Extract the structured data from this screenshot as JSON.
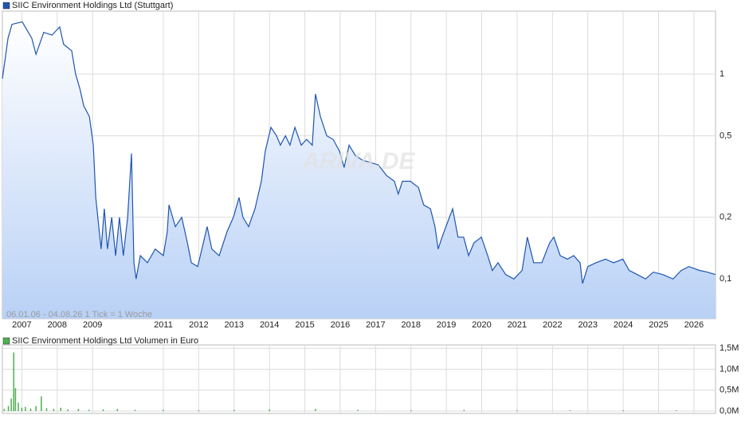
{
  "chart_data": [
    {
      "type": "line",
      "title": "SIIC Environment Holdings Ltd (Stuttgart)",
      "info": "06.01.06 - 04.08.26   1 Tick = 1 Woche",
      "watermark": "ARIVA.DE",
      "log_scale": true,
      "grid": true,
      "color": "#1f55b0",
      "x": [
        2006.45,
        2006.61,
        2006.72,
        2007.01,
        2007.28,
        2007.4,
        2007.62,
        2007.85,
        2008.07,
        2008.18,
        2008.41,
        2008.52,
        2008.64,
        2008.75,
        2008.91,
        2009.02,
        2009.09,
        2009.24,
        2009.33,
        2009.42,
        2009.54,
        2009.65,
        2009.76,
        2009.87,
        2009.99,
        2010.1,
        2010.17,
        2010.23,
        2010.35,
        2010.55,
        2010.77,
        2011.0,
        2011.11,
        2011.16,
        2011.34,
        2011.52,
        2011.68,
        2011.79,
        2011.97,
        2012.13,
        2012.24,
        2012.37,
        2012.58,
        2012.8,
        2012.98,
        2013.14,
        2013.25,
        2013.41,
        2013.59,
        2013.77,
        2013.88,
        2014.04,
        2014.2,
        2014.31,
        2014.45,
        2014.58,
        2014.72,
        2014.9,
        2015.05,
        2015.21,
        2015.3,
        2015.44,
        2015.62,
        2015.8,
        2015.98,
        2016.11,
        2016.25,
        2016.43,
        2016.63,
        2016.86,
        2017.08,
        2017.31,
        2017.53,
        2017.64,
        2017.76,
        2017.98,
        2018.21,
        2018.36,
        2018.55,
        2018.68,
        2018.77,
        2018.88,
        2019.04,
        2019.18,
        2019.33,
        2019.49,
        2019.63,
        2019.78,
        2019.99,
        2020.17,
        2020.3,
        2020.46,
        2020.68,
        2020.91,
        2021.14,
        2021.29,
        2021.47,
        2021.7,
        2021.92,
        2022.04,
        2022.22,
        2022.42,
        2022.6,
        2022.78,
        2022.85,
        2023.0,
        2023.23,
        2023.5,
        2023.73,
        2023.99,
        2024.17,
        2024.4,
        2024.63,
        2024.85,
        2025.12,
        2025.41,
        2025.64,
        2025.86,
        2026.16,
        2026.38,
        2026.61
      ],
      "series": [
        {
          "name": "SIIC Environment Holdings Ltd (Stuttgart)",
          "color": "#1f55b0",
          "values": [
            0.95,
            1.5,
            1.75,
            1.8,
            1.5,
            1.25,
            1.6,
            1.55,
            1.7,
            1.4,
            1.3,
            1.0,
            0.85,
            0.7,
            0.62,
            0.45,
            0.25,
            0.14,
            0.22,
            0.14,
            0.2,
            0.13,
            0.2,
            0.13,
            0.2,
            0.41,
            0.12,
            0.1,
            0.13,
            0.12,
            0.14,
            0.13,
            0.17,
            0.23,
            0.18,
            0.2,
            0.15,
            0.12,
            0.115,
            0.15,
            0.18,
            0.14,
            0.13,
            0.17,
            0.2,
            0.25,
            0.2,
            0.18,
            0.22,
            0.3,
            0.42,
            0.55,
            0.5,
            0.45,
            0.5,
            0.45,
            0.55,
            0.45,
            0.48,
            0.45,
            0.8,
            0.62,
            0.5,
            0.48,
            0.42,
            0.35,
            0.45,
            0.4,
            0.38,
            0.37,
            0.36,
            0.32,
            0.3,
            0.26,
            0.3,
            0.3,
            0.28,
            0.23,
            0.22,
            0.18,
            0.14,
            0.16,
            0.19,
            0.22,
            0.16,
            0.16,
            0.13,
            0.15,
            0.16,
            0.13,
            0.11,
            0.12,
            0.105,
            0.1,
            0.11,
            0.16,
            0.12,
            0.12,
            0.15,
            0.16,
            0.13,
            0.125,
            0.13,
            0.12,
            0.095,
            0.115,
            0.12,
            0.125,
            0.12,
            0.125,
            0.11,
            0.105,
            0.1,
            0.108,
            0.105,
            0.1,
            0.11,
            0.115,
            0.11,
            0.108,
            0.105
          ]
        }
      ],
      "xlim": [
        2006.45,
        2026.61
      ],
      "xticks": [
        2007,
        2008,
        2009,
        2011,
        2012,
        2013,
        2014,
        2015,
        2016,
        2017,
        2018,
        2019,
        2020,
        2021,
        2022,
        2023,
        2024,
        2025,
        2026
      ],
      "ylim": [
        0.064,
        2.03
      ],
      "yticks": [
        {
          "value": 0.1,
          "label": "0,1"
        },
        {
          "value": 0.2,
          "label": "0,2"
        },
        {
          "value": 0.5,
          "label": "0,5"
        },
        1
      ]
    },
    {
      "type": "bar",
      "title": "SIIC Environment Holdings Ltd Volumen in Euro",
      "grid": true,
      "x": [
        2006.5,
        2006.62,
        2006.7,
        2006.77,
        2006.82,
        2006.9,
        2007.0,
        2007.1,
        2007.25,
        2007.4,
        2007.55,
        2007.7,
        2007.9,
        2008.1,
        2008.3,
        2008.6,
        2008.9,
        2009.3,
        2009.7,
        2010.2,
        2011.0,
        2012.0,
        2013.0,
        2014.0,
        2015.3,
        2016.5,
        2018.0,
        2019.5,
        2021.0,
        2022.5,
        2024.0,
        2025.5
      ],
      "series": [
        {
          "name": "SIIC Environment Holdings Ltd Volumen in Euro",
          "color": "#4caf50",
          "values": [
            0.05,
            0.12,
            0.3,
            1.4,
            0.55,
            0.2,
            0.08,
            0.1,
            0.06,
            0.12,
            0.35,
            0.07,
            0.05,
            0.08,
            0.04,
            0.05,
            0.03,
            0.04,
            0.05,
            0.03,
            0.03,
            0.02,
            0.03,
            0.04,
            0.05,
            0.03,
            0.02,
            0.03,
            0.02,
            0.02,
            0.02,
            0.02
          ]
        }
      ],
      "xlim": [
        2006.45,
        2026.61
      ],
      "ylim": [
        0,
        1.58
      ],
      "yticks": [
        {
          "value": 0,
          "label": "0,0M"
        },
        {
          "value": 0.5,
          "label": "0,5M"
        },
        {
          "value": 1,
          "label": "1,0M"
        },
        {
          "value": 1.5,
          "label": "1,5M"
        }
      ]
    }
  ]
}
